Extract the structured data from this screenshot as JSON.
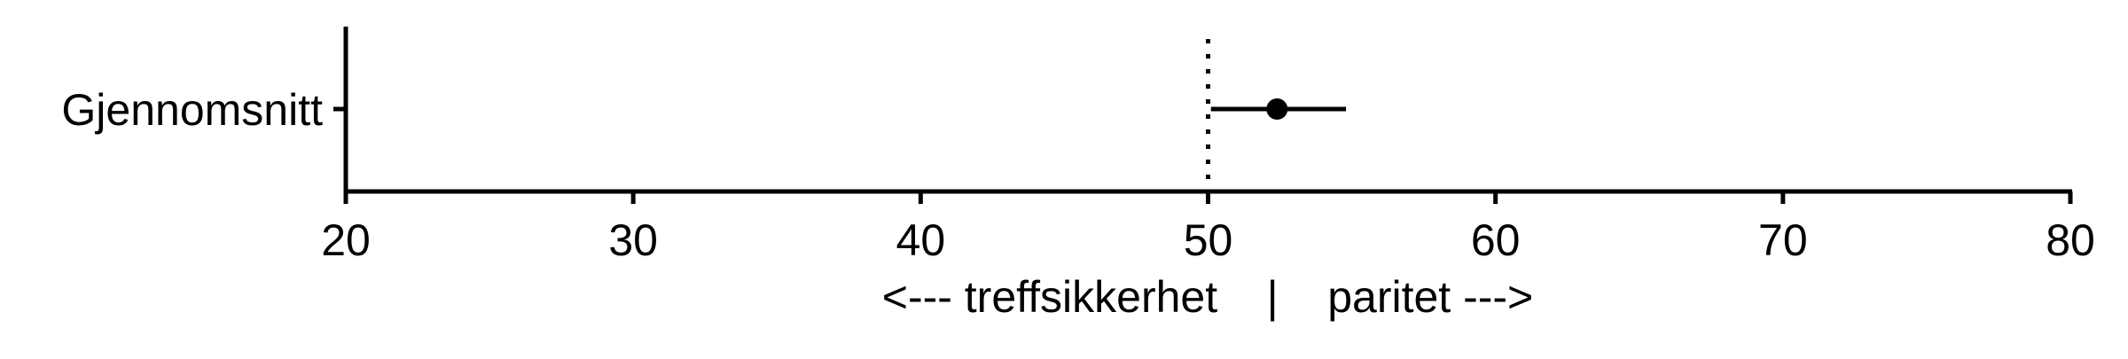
{
  "chart_data": {
    "type": "scatter",
    "categories": [
      "Gjennomsnitt"
    ],
    "points": [
      {
        "category": "Gjennomsnitt",
        "value": 52.4,
        "low": 50.1,
        "high": 54.8
      }
    ],
    "xlim": [
      20,
      80
    ],
    "x_ticks": [
      20,
      30,
      40,
      50,
      60,
      70,
      80
    ],
    "reference_line": 50,
    "xlabel": "<--- treffsikkerhet    |    paritet --->",
    "grid": false,
    "colors": {
      "axis": "#000000",
      "point": "#000000",
      "reference": "#000000"
    }
  }
}
